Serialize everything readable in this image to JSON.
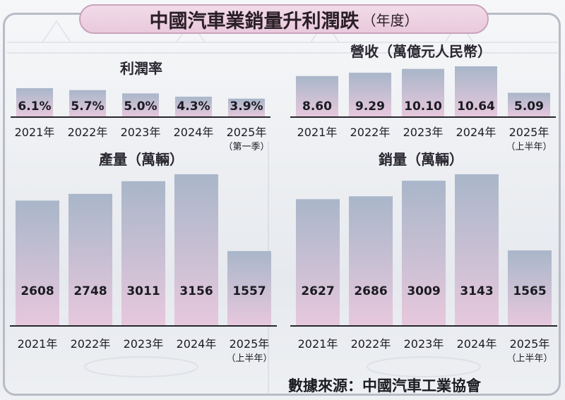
{
  "title": "中國汽車業銷量升利潤跌",
  "title_suffix": "（年度）",
  "source": "數據來源：中國汽車工業協會",
  "colors": {
    "bar_top": "#a9b6c9",
    "bar_bottom": "#e7c8dd",
    "baseline": "#26262c",
    "title_bg": "#ecd0e1"
  },
  "chart_data": [
    {
      "type": "bar",
      "title": "利潤率",
      "categories": [
        "2021年",
        "2022年",
        "2023年",
        "2024年",
        "2025年"
      ],
      "category_notes": [
        "",
        "",
        "",
        "",
        "（第一季）"
      ],
      "values": [
        6.1,
        5.7,
        5.0,
        4.3,
        3.9
      ],
      "value_labels": [
        "6.1%",
        "5.7%",
        "5.0%",
        "4.3%",
        "3.9%"
      ],
      "unit": "%"
    },
    {
      "type": "bar",
      "title": "營收（萬億元人民幣）",
      "categories": [
        "2021年",
        "2022年",
        "2023年",
        "2024年",
        "2025年"
      ],
      "category_notes": [
        "",
        "",
        "",
        "",
        "（上半年）"
      ],
      "values": [
        8.6,
        9.29,
        10.1,
        10.64,
        5.09
      ],
      "value_labels": [
        "8.60",
        "9.29",
        "10.10",
        "10.64",
        "5.09"
      ],
      "unit": "萬億元人民幣"
    },
    {
      "type": "bar",
      "title": "產量（萬輛）",
      "categories": [
        "2021年",
        "2022年",
        "2023年",
        "2024年",
        "2025年"
      ],
      "category_notes": [
        "",
        "",
        "",
        "",
        "（上半年）"
      ],
      "values": [
        2608,
        2748,
        3011,
        3156,
        1557
      ],
      "value_labels": [
        "2608",
        "2748",
        "3011",
        "3156",
        "1557"
      ],
      "unit": "萬輛"
    },
    {
      "type": "bar",
      "title": "銷量（萬輛）",
      "categories": [
        "2021年",
        "2022年",
        "2023年",
        "2024年",
        "2025年"
      ],
      "category_notes": [
        "",
        "",
        "",
        "",
        "（上半年）"
      ],
      "values": [
        2627,
        2686,
        3009,
        3143,
        1565
      ],
      "value_labels": [
        "2627",
        "2686",
        "3009",
        "3143",
        "1565"
      ],
      "unit": "萬輛"
    }
  ]
}
